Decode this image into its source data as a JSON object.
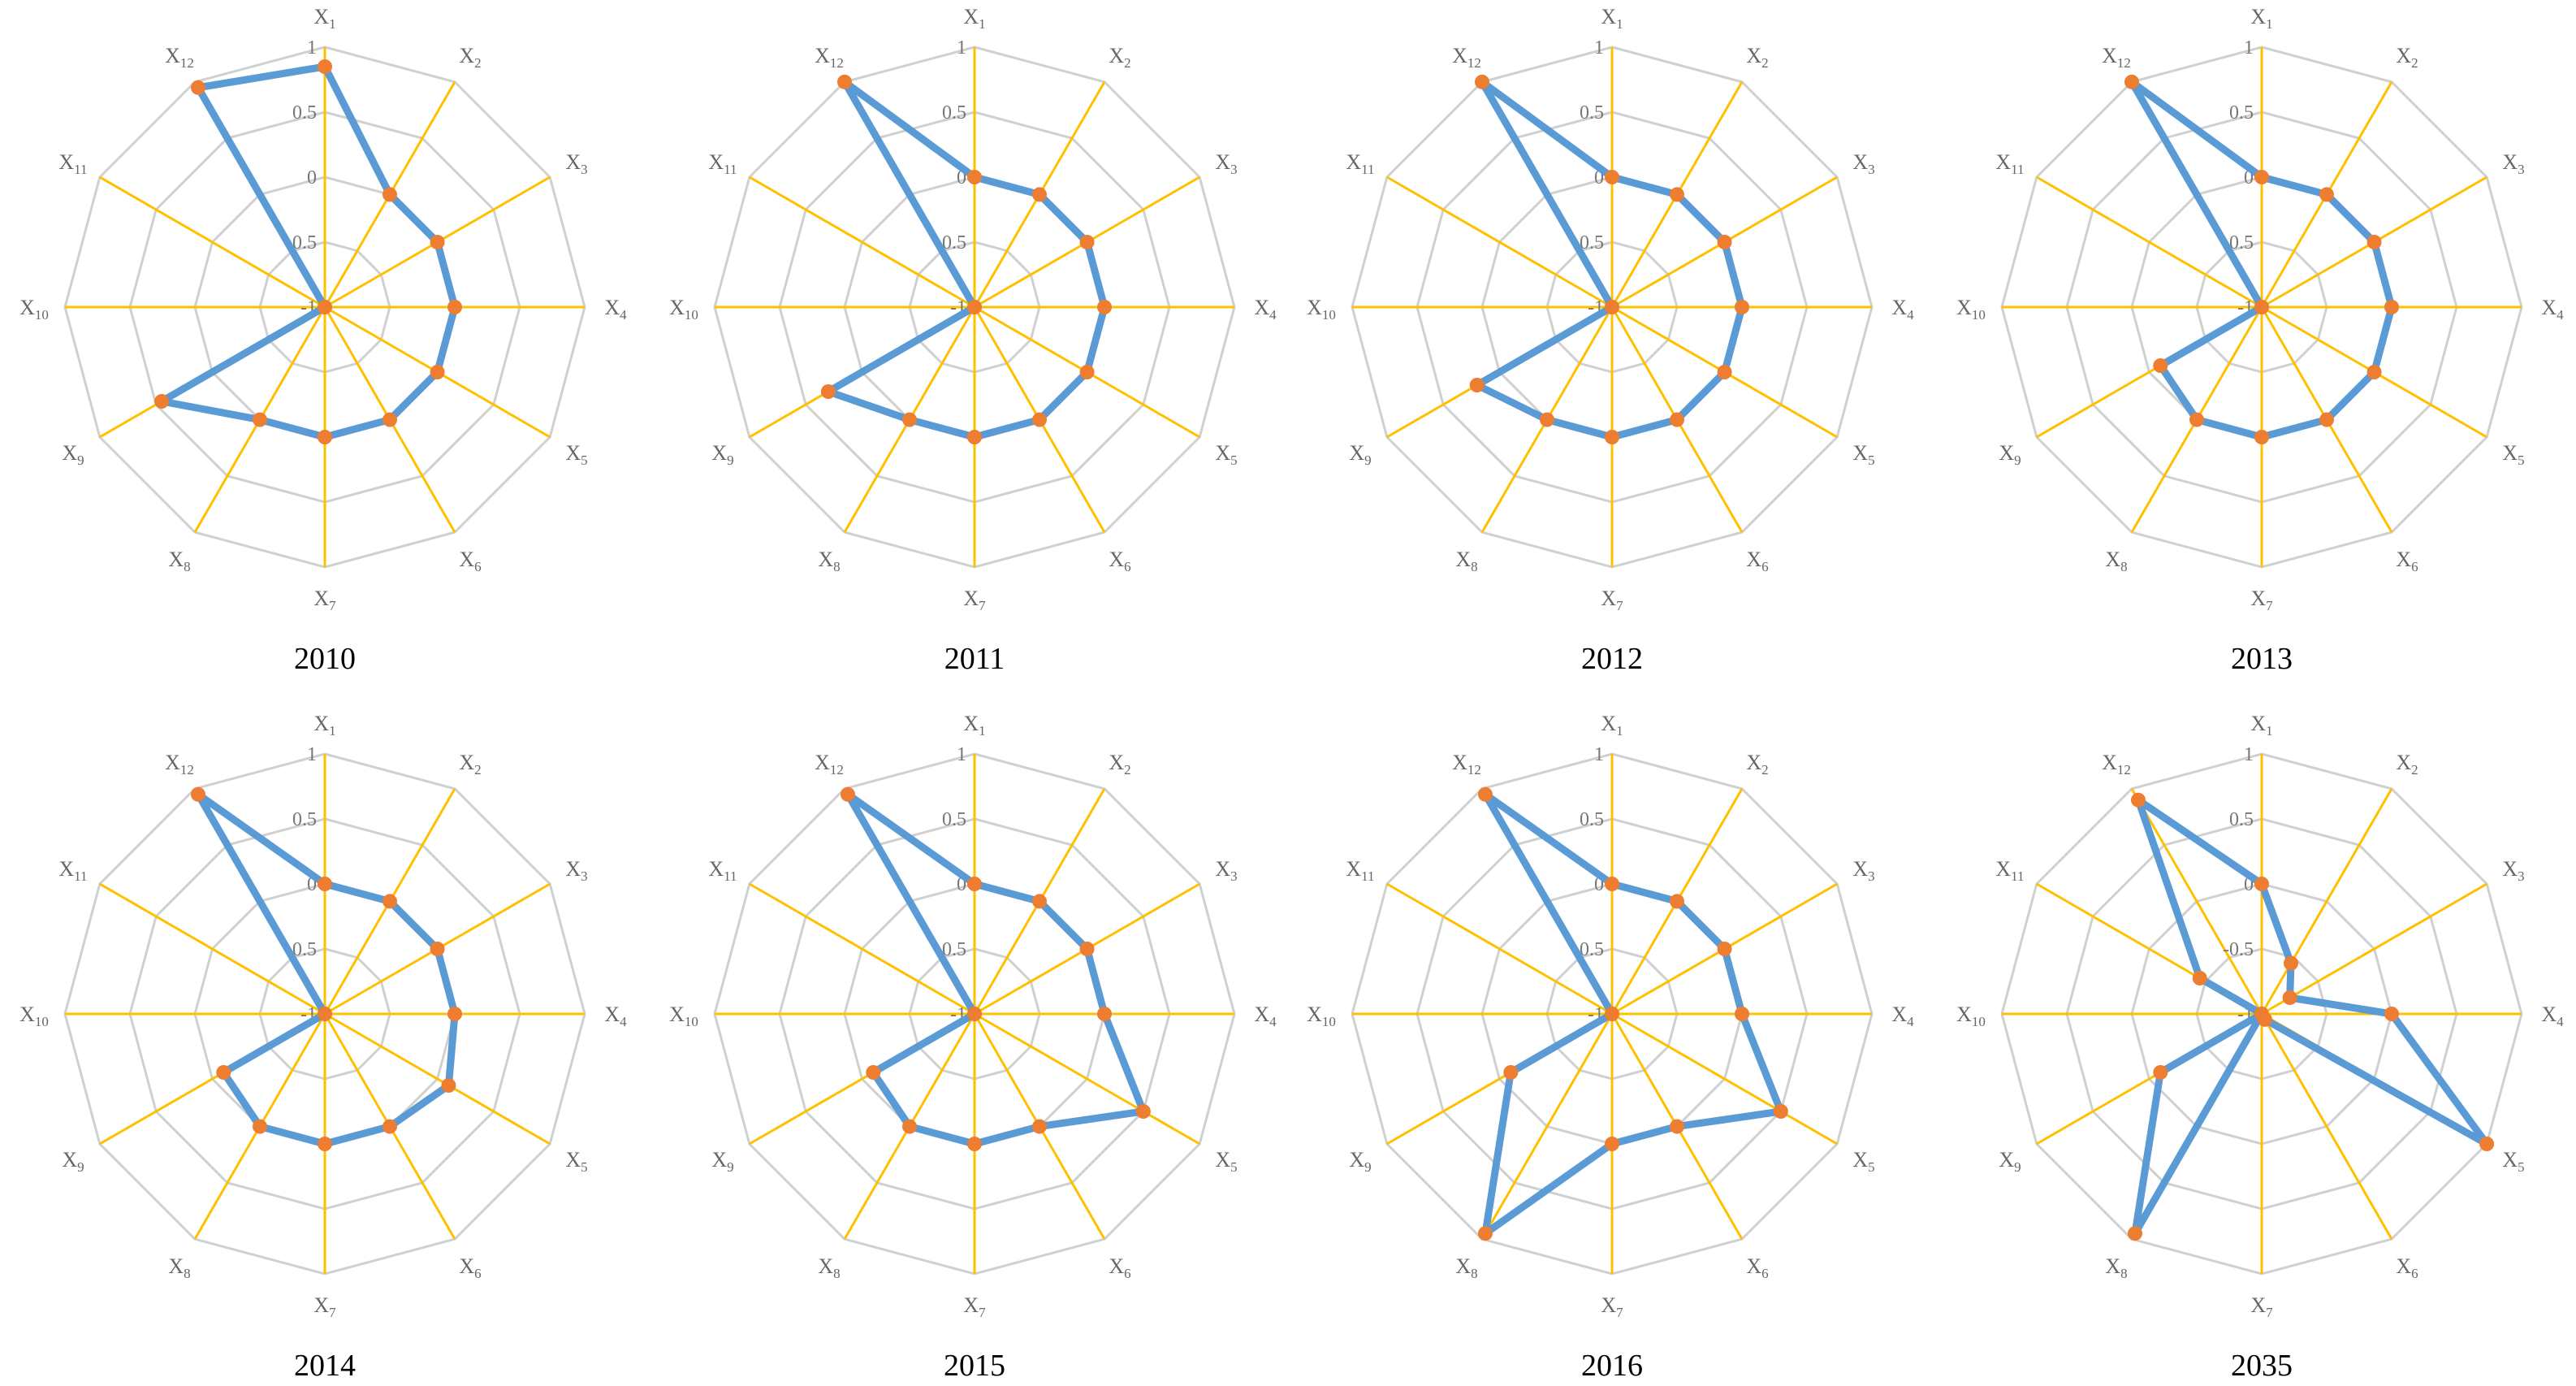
{
  "chart_data": {
    "type": "radar",
    "axis_prefix": "X",
    "axes": [
      "1",
      "2",
      "3",
      "4",
      "5",
      "6",
      "7",
      "8",
      "9",
      "10",
      "11",
      "12"
    ],
    "rlim": [
      -1,
      1
    ],
    "ticks": [
      "1",
      "0.5",
      "0",
      "-0.5",
      "-1"
    ],
    "tick_values": [
      1,
      0.5,
      0,
      -0.5,
      -1
    ],
    "grid": true,
    "colors": {
      "series": "#5b9bd5",
      "marker": "#ed7d31",
      "spokes": "#ffc000",
      "grid": "#d0d0d0"
    },
    "charts": [
      {
        "year": "2010",
        "values": [
          0.85,
          0,
          0,
          0,
          0,
          0,
          0,
          0,
          0.45,
          -1,
          -1,
          0.95
        ]
      },
      {
        "year": "2011",
        "values": [
          0,
          0,
          0,
          0,
          0,
          0,
          0,
          0,
          0.3,
          -1,
          -1,
          1
        ]
      },
      {
        "year": "2012",
        "values": [
          0,
          0,
          0,
          0,
          0,
          0,
          0,
          0,
          0.2,
          -1,
          -1,
          1
        ]
      },
      {
        "year": "2013",
        "values": [
          0,
          0,
          0,
          0,
          0,
          0,
          0,
          0,
          -0.1,
          -1,
          -1,
          1
        ]
      },
      {
        "year": "2014",
        "values": [
          0,
          0,
          0,
          0,
          0.1,
          0,
          0,
          0,
          -0.1,
          -1,
          -1,
          0.95
        ]
      },
      {
        "year": "2015",
        "values": [
          0,
          0,
          0,
          0,
          0.5,
          0,
          0,
          0,
          -0.1,
          -1,
          -1,
          0.95
        ]
      },
      {
        "year": "2016",
        "values": [
          0,
          0,
          0,
          0,
          0.5,
          0,
          0,
          0.95,
          -0.1,
          -1,
          -1,
          0.95
        ]
      },
      {
        "year": "2035",
        "values": [
          0,
          -0.55,
          -0.75,
          0,
          1,
          -0.95,
          -1,
          0.95,
          -0.1,
          -1,
          -0.45,
          0.9
        ]
      }
    ]
  }
}
